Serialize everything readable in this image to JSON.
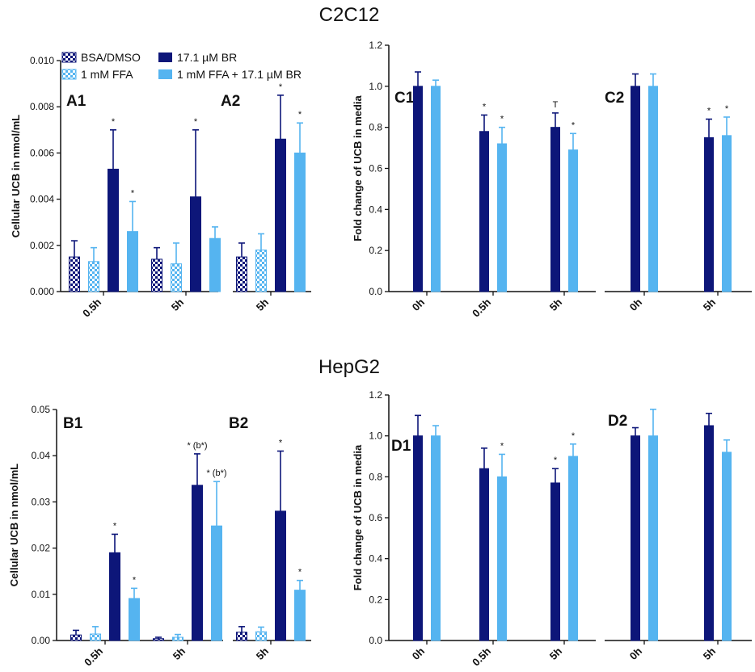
{
  "colors": {
    "dark": "#0d1679",
    "light": "#55b4f0",
    "axis": "#111111"
  },
  "sections": [
    {
      "title": "C2C12"
    },
    {
      "title": "HepG2"
    }
  ],
  "legend": [
    {
      "label": "BSA/DMSO",
      "color": "#0d1679",
      "pattern": "checker"
    },
    {
      "label": "1 mM FFA",
      "color": "#55b4f0",
      "pattern": "checker"
    },
    {
      "label": "17.1 µM BR",
      "color": "#0d1679",
      "pattern": "solid"
    },
    {
      "label": "1 mM FFA + 17.1 µM BR",
      "color": "#55b4f0",
      "pattern": "solid"
    }
  ],
  "chart_data": [
    {
      "id": "A",
      "type": "bar",
      "ylabel": "Cellular UCB in nmol/mL",
      "ylim": [
        0,
        0.01
      ],
      "yticks": [
        "0.000",
        "0.002",
        "0.004",
        "0.006",
        "0.008",
        "0.010"
      ],
      "panels": [
        {
          "label": "A1",
          "categories": [
            "0.5h",
            "5h"
          ],
          "series": [
            {
              "name": "BSA/DMSO",
              "values": [
                0.0015,
                0.0014
              ],
              "errors": [
                0.0007,
                0.0005
              ],
              "marks": [
                "",
                ""
              ]
            },
            {
              "name": "1 mM FFA",
              "values": [
                0.0013,
                0.0012
              ],
              "errors": [
                0.0006,
                0.0009
              ],
              "marks": [
                "",
                ""
              ]
            },
            {
              "name": "17.1 µM BR",
              "values": [
                0.0053,
                0.0041
              ],
              "errors": [
                0.0017,
                0.0029
              ],
              "marks": [
                "*",
                "*"
              ]
            },
            {
              "name": "1 mM FFA + 17.1 µM BR",
              "values": [
                0.0026,
                0.0023
              ],
              "errors": [
                0.0013,
                0.0005
              ],
              "marks": [
                "*",
                ""
              ]
            }
          ]
        },
        {
          "label": "A2",
          "categories": [
            "5h"
          ],
          "series": [
            {
              "name": "BSA/DMSO",
              "values": [
                0.0015
              ],
              "errors": [
                0.0006
              ],
              "marks": [
                ""
              ]
            },
            {
              "name": "1 mM FFA",
              "values": [
                0.0018
              ],
              "errors": [
                0.0007
              ],
              "marks": [
                ""
              ]
            },
            {
              "name": "17.1 µM BR",
              "values": [
                0.0066
              ],
              "errors": [
                0.0019
              ],
              "marks": [
                "*"
              ]
            },
            {
              "name": "1 mM FFA + 17.1 µM BR",
              "values": [
                0.006
              ],
              "errors": [
                0.0013
              ],
              "marks": [
                "*"
              ]
            }
          ]
        }
      ]
    },
    {
      "id": "C",
      "type": "bar",
      "ylabel": "Fold change of UCB in media",
      "ylim": [
        0,
        1.2
      ],
      "yticks": [
        "0.0",
        "0.2",
        "0.4",
        "0.6",
        "0.8",
        "1.0",
        "1.2"
      ],
      "panels": [
        {
          "label": "C1",
          "categories": [
            "0h",
            "0.5h",
            "5h"
          ],
          "series": [
            {
              "name": "17.1 µM BR",
              "values": [
                1.0,
                0.78,
                0.8
              ],
              "errors": [
                0.07,
                0.08,
                0.07
              ],
              "marks": [
                "",
                "*",
                "T"
              ]
            },
            {
              "name": "1 mM FFA + 17.1 µM BR",
              "values": [
                1.0,
                0.72,
                0.69
              ],
              "errors": [
                0.03,
                0.08,
                0.08
              ],
              "marks": [
                "",
                "*",
                "*"
              ]
            }
          ]
        },
        {
          "label": "C2",
          "categories": [
            "0h",
            "5h"
          ],
          "series": [
            {
              "name": "17.1 µM BR",
              "values": [
                1.0,
                0.75
              ],
              "errors": [
                0.06,
                0.09
              ],
              "marks": [
                "",
                "*"
              ]
            },
            {
              "name": "1 mM FFA + 17.1 µM BR",
              "values": [
                1.0,
                0.76
              ],
              "errors": [
                0.06,
                0.09
              ],
              "marks": [
                "",
                "*"
              ]
            }
          ]
        }
      ]
    },
    {
      "id": "B",
      "type": "bar",
      "ylabel": "Cellular UCB in nmol/mL",
      "ylim": [
        0,
        0.05
      ],
      "yticks": [
        "0.00",
        "0.01",
        "0.02",
        "0.03",
        "0.04",
        "0.05"
      ],
      "panels": [
        {
          "label": "B1",
          "categories": [
            "0.5h",
            "5h"
          ],
          "series": [
            {
              "name": "BSA/DMSO",
              "values": [
                0.0012,
                0.0004
              ],
              "errors": [
                0.001,
                0.0003
              ],
              "marks": [
                "",
                ""
              ]
            },
            {
              "name": "1 mM FFA",
              "values": [
                0.0014,
                0.0007
              ],
              "errors": [
                0.0016,
                0.0006
              ],
              "marks": [
                "",
                ""
              ]
            },
            {
              "name": "17.1 µM BR",
              "values": [
                0.019,
                0.0336
              ],
              "errors": [
                0.004,
                0.0068
              ],
              "marks": [
                "*",
                "* (b*)"
              ]
            },
            {
              "name": "1 mM FFA + 17.1 µM BR",
              "values": [
                0.0091,
                0.0248
              ],
              "errors": [
                0.0022,
                0.0096
              ],
              "marks": [
                "*",
                "* (b*)"
              ]
            }
          ]
        },
        {
          "label": "B2",
          "categories": [
            "5h"
          ],
          "series": [
            {
              "name": "BSA/DMSO",
              "values": [
                0.0018
              ],
              "errors": [
                0.0012
              ],
              "marks": [
                ""
              ]
            },
            {
              "name": "1 mM FFA",
              "values": [
                0.0019
              ],
              "errors": [
                0.001
              ],
              "marks": [
                ""
              ]
            },
            {
              "name": "17.1 µM BR",
              "values": [
                0.028
              ],
              "errors": [
                0.013
              ],
              "marks": [
                "*"
              ]
            },
            {
              "name": "1 mM FFA + 17.1 µM BR",
              "values": [
                0.0109
              ],
              "errors": [
                0.0021
              ],
              "marks": [
                "*"
              ]
            }
          ]
        }
      ]
    },
    {
      "id": "D",
      "type": "bar",
      "ylabel": "Fold change of UCB in media",
      "ylim": [
        0,
        1.2
      ],
      "yticks": [
        "0.0",
        "0.2",
        "0.4",
        "0.6",
        "0.8",
        "1.0",
        "1.2"
      ],
      "panels": [
        {
          "label": "D1",
          "categories": [
            "0h",
            "0.5h",
            "5h"
          ],
          "series": [
            {
              "name": "17.1 µM BR",
              "values": [
                1.0,
                0.84,
                0.77
              ],
              "errors": [
                0.1,
                0.1,
                0.07
              ],
              "marks": [
                "",
                "",
                "*"
              ]
            },
            {
              "name": "1 mM FFA + 17.1 µM BR",
              "values": [
                1.0,
                0.8,
                0.9
              ],
              "errors": [
                0.05,
                0.11,
                0.06
              ],
              "marks": [
                "",
                "*",
                "*"
              ]
            }
          ]
        },
        {
          "label": "D2",
          "categories": [
            "0h",
            "5h"
          ],
          "series": [
            {
              "name": "17.1 µM BR",
              "values": [
                1.0,
                1.05
              ],
              "errors": [
                0.04,
                0.06
              ],
              "marks": [
                "",
                ""
              ]
            },
            {
              "name": "1 mM FFA + 17.1 µM BR",
              "values": [
                1.0,
                0.92
              ],
              "errors": [
                0.13,
                0.06
              ],
              "marks": [
                "",
                ""
              ]
            }
          ]
        }
      ]
    }
  ]
}
